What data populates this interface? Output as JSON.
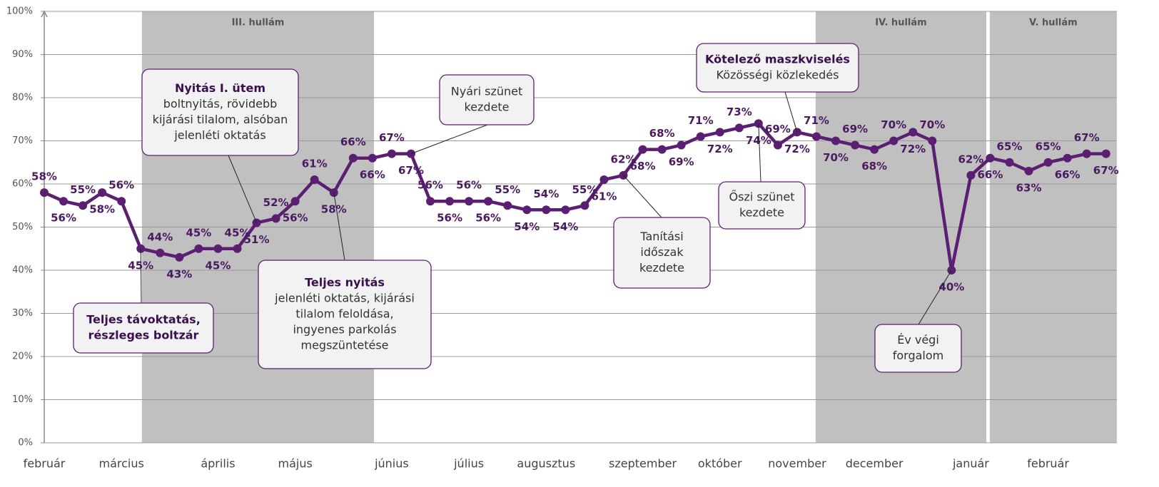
{
  "chart_data": {
    "type": "line",
    "categories": [
      "február",
      null,
      null,
      null,
      "március",
      null,
      null,
      null,
      null,
      "április",
      null,
      null,
      null,
      "május",
      null,
      null,
      null,
      null,
      "június",
      null,
      null,
      null,
      "július",
      null,
      null,
      null,
      "augusztus",
      null,
      null,
      null,
      null,
      "szeptember",
      null,
      null,
      null,
      "október",
      null,
      null,
      null,
      "november",
      null,
      null,
      null,
      "december",
      null,
      null,
      null,
      null,
      "január",
      null,
      null,
      null,
      "február",
      null,
      null,
      null
    ],
    "series": [
      {
        "color": "#5b1f72",
        "values": [
          58,
          56,
          55,
          58,
          56,
          45,
          44,
          43,
          45,
          45,
          45,
          51,
          52,
          56,
          61,
          58,
          66,
          66,
          67,
          67,
          56,
          56,
          56,
          56,
          55,
          54,
          54,
          54,
          55,
          61,
          62,
          68,
          68,
          69,
          71,
          72,
          73,
          74,
          69,
          72,
          71,
          70,
          69,
          68,
          70,
          72,
          70,
          40,
          62,
          66,
          65,
          63,
          65,
          66,
          67,
          67
        ],
        "value_labels": [
          "58%",
          "56%",
          "55%",
          "58%",
          "56%",
          "45%",
          "44%",
          "43%",
          "45%",
          "45%",
          "45%",
          "51%",
          "52%",
          "56%",
          "61%",
          "58%",
          "66%",
          "66%",
          "67%",
          "67%",
          "56%",
          "56%",
          "56%",
          "56%",
          "55%",
          "54%",
          "54%",
          "54%",
          "55%",
          "61%",
          "62%",
          "68%",
          "68%",
          "69%",
          "71%",
          "72%",
          "73%",
          "74%",
          "69%",
          "72%",
          "71%",
          "70%",
          "69%",
          "68%",
          "70%",
          "72%",
          "70%",
          "40%",
          "62%",
          "66%",
          "65%",
          "63%",
          "65%",
          "66%",
          "67%",
          "67%"
        ]
      }
    ],
    "ylim": [
      0,
      100
    ],
    "yticks": [
      {
        "value": 0,
        "label": "0%"
      },
      {
        "value": 10,
        "label": "10%"
      },
      {
        "value": 20,
        "label": "20%"
      },
      {
        "value": 30,
        "label": "30%"
      },
      {
        "value": 40,
        "label": "40%"
      },
      {
        "value": 50,
        "label": "50%"
      },
      {
        "value": 60,
        "label": "60%"
      },
      {
        "value": 70,
        "label": "70%"
      },
      {
        "value": 80,
        "label": "80%"
      },
      {
        "value": 90,
        "label": "90%"
      },
      {
        "value": 100,
        "label": "100%"
      }
    ],
    "grid": true,
    "bands": [
      "III. hullám",
      "IV. hullám",
      "V. hullám"
    ],
    "annotations": [
      {
        "title": [
          "Nyitás I. ütem"
        ],
        "text": [
          "boltnyitás, rövidebb",
          "kijárási tilalom, alsóban",
          "jelenléti oktatás"
        ]
      },
      {
        "title": [
          "Teljes távoktatás,",
          "részleges boltzár"
        ],
        "text": []
      },
      {
        "title": [
          "Teljes nyitás"
        ],
        "text": [
          "jelenléti oktatás, kijárási",
          "tilalom feloldása,",
          "ingyenes parkolás",
          "megszüntetése"
        ]
      },
      {
        "title": [],
        "text": [
          "Nyári szünet",
          "kezdete"
        ]
      },
      {
        "title": [
          "Kötelező maszkviselés"
        ],
        "text": [
          "Közösségi közlekedés"
        ]
      },
      {
        "title": [],
        "text": [
          "Tanítási",
          "időszak",
          "kezdete"
        ]
      },
      {
        "title": [],
        "text": [
          "Őszi szünet",
          "kezdete"
        ]
      },
      {
        "title": [],
        "text": [
          "Év végi",
          "forgalom"
        ]
      }
    ]
  }
}
